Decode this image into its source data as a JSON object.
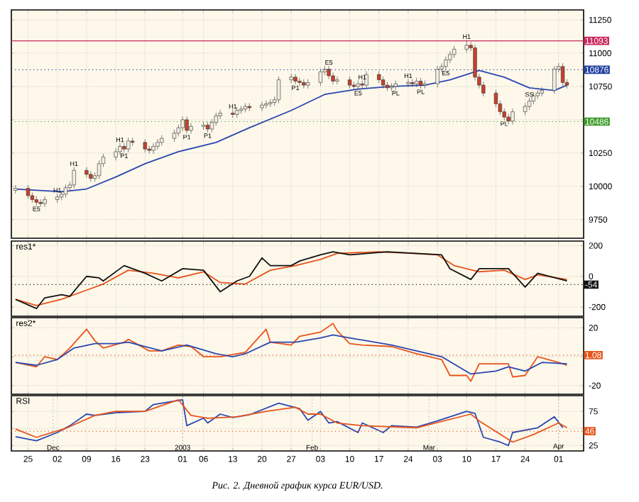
{
  "chart_data": [
    {
      "type": "candlestick",
      "xlim": [
        "2002-11-21",
        "2003-04-07"
      ],
      "ylim": [
        9610,
        11325
      ],
      "grid": true,
      "tick_labels": "y",
      "x": [
        "2002-11-22",
        "2002-11-25",
        "2002-11-26",
        "2002-11-27",
        "2002-11-28",
        "2002-11-29",
        "2002-12-02",
        "2002-12-03",
        "2002-12-04",
        "2002-12-05",
        "2002-12-06",
        "2002-12-09",
        "2002-12-10",
        "2002-12-11",
        "2002-12-12",
        "2002-12-13",
        "2002-12-16",
        "2002-12-17",
        "2002-12-18",
        "2002-12-19",
        "2002-12-20",
        "2002-12-23",
        "2002-12-24",
        "2002-12-25",
        "2002-12-26",
        "2002-12-27",
        "2002-12-30",
        "2002-12-31",
        "2003-01-01",
        "2003-01-02",
        "2003-01-03",
        "2003-01-06",
        "2003-01-07",
        "2003-01-08",
        "2003-01-09",
        "2003-01-10",
        "2003-01-13",
        "2003-01-14",
        "2003-01-15",
        "2003-01-16",
        "2003-01-17",
        "2003-01-20",
        "2003-01-21",
        "2003-01-22",
        "2003-01-23",
        "2003-01-24",
        "2003-01-27",
        "2003-01-28",
        "2003-01-29",
        "2003-01-30",
        "2003-01-31",
        "2003-02-03",
        "2003-02-04",
        "2003-02-05",
        "2003-02-06",
        "2003-02-07",
        "2003-02-10",
        "2003-02-11",
        "2003-02-12",
        "2003-02-13",
        "2003-02-14",
        "2003-02-17",
        "2003-02-18",
        "2003-02-19",
        "2003-02-20",
        "2003-02-21",
        "2003-02-24",
        "2003-02-25",
        "2003-02-26",
        "2003-02-27",
        "2003-02-28",
        "2003-03-03",
        "2003-03-04",
        "2003-03-05",
        "2003-03-06",
        "2003-03-07",
        "2003-03-10",
        "2003-03-11",
        "2003-03-12",
        "2003-03-13",
        "2003-03-14",
        "2003-03-17",
        "2003-03-18",
        "2003-03-19",
        "2003-03-20",
        "2003-03-21",
        "2003-03-24",
        "2003-03-25",
        "2003-03-26",
        "2003-03-27",
        "2003-03-28",
        "2003-03-31",
        "2003-04-01",
        "2003-04-02",
        "2003-04-03"
      ],
      "ohlc": [
        [
          9970,
          10010,
          9945,
          9985
        ],
        [
          9985,
          10010,
          9905,
          9930
        ],
        [
          9930,
          9955,
          9875,
          9900
        ],
        [
          9900,
          9925,
          9855,
          9880
        ],
        [
          9880,
          9905,
          9845,
          9870
        ],
        [
          9870,
          9925,
          9845,
          9900
        ],
        [
          9900,
          9945,
          9875,
          9920
        ],
        [
          9920,
          9965,
          9895,
          9940
        ],
        [
          9940,
          10015,
          9915,
          9990
        ],
        [
          9990,
          10035,
          9965,
          10010
        ],
        [
          10010,
          10145,
          9985,
          10120
        ],
        [
          10120,
          10145,
          10065,
          10090
        ],
        [
          10090,
          10115,
          10035,
          10060
        ],
        [
          10060,
          10105,
          10035,
          10080
        ],
        [
          10080,
          10195,
          10055,
          10170
        ],
        [
          10170,
          10245,
          10145,
          10220
        ],
        [
          10220,
          10285,
          10195,
          10260
        ],
        [
          10260,
          10325,
          10235,
          10300
        ],
        [
          10300,
          10325,
          10255,
          10280
        ],
        [
          10280,
          10365,
          10255,
          10340
        ],
        [
          10340,
          10365,
          10305,
          10330
        ],
        [
          10330,
          10355,
          10255,
          10280
        ],
        [
          10280,
          10305,
          10245,
          10270
        ],
        [
          10270,
          10325,
          10245,
          10300
        ],
        [
          10300,
          10355,
          10275,
          10330
        ],
        [
          10330,
          10385,
          10305,
          10360
        ],
        [
          10360,
          10425,
          10335,
          10400
        ],
        [
          10400,
          10465,
          10375,
          10440
        ],
        [
          10440,
          10525,
          10415,
          10500
        ],
        [
          10500,
          10525,
          10395,
          10420
        ],
        [
          10420,
          10475,
          10395,
          10450
        ],
        [
          10450,
          10485,
          10425,
          10460
        ],
        [
          10460,
          10485,
          10405,
          10430
        ],
        [
          10430,
          10505,
          10405,
          10480
        ],
        [
          10480,
          10555,
          10455,
          10530
        ],
        [
          10530,
          10575,
          10505,
          10550
        ],
        [
          10550,
          10575,
          10515,
          10540
        ],
        [
          10540,
          10595,
          10515,
          10570
        ],
        [
          10570,
          10605,
          10545,
          10580
        ],
        [
          10580,
          10625,
          10555,
          10600
        ],
        [
          10600,
          10625,
          10565,
          10590
        ],
        [
          10590,
          10635,
          10565,
          10610
        ],
        [
          10610,
          10645,
          10585,
          10620
        ],
        [
          10620,
          10655,
          10595,
          10630
        ],
        [
          10630,
          10675,
          10605,
          10650
        ],
        [
          10650,
          10825,
          10625,
          10800
        ],
        [
          10800,
          10845,
          10775,
          10820
        ],
        [
          10820,
          10845,
          10765,
          10790
        ],
        [
          10790,
          10815,
          10755,
          10780
        ],
        [
          10780,
          10805,
          10735,
          10760
        ],
        [
          10760,
          10805,
          10735,
          10780
        ],
        [
          10780,
          10885,
          10755,
          10860
        ],
        [
          10860,
          10905,
          10835,
          10880
        ],
        [
          10880,
          10905,
          10805,
          10830
        ],
        [
          10830,
          10855,
          10765,
          10790
        ],
        [
          10790,
          10825,
          10765,
          10800
        ],
        [
          10800,
          10825,
          10735,
          10760
        ],
        [
          10760,
          10785,
          10725,
          10750
        ],
        [
          10750,
          10795,
          10725,
          10770
        ],
        [
          10770,
          10795,
          10735,
          10760
        ],
        [
          10760,
          10865,
          10735,
          10840
        ],
        [
          10840,
          10865,
          10775,
          10800
        ],
        [
          10800,
          10825,
          10735,
          10760
        ],
        [
          10760,
          10785,
          10715,
          10740
        ],
        [
          10740,
          10775,
          10715,
          10750
        ],
        [
          10750,
          10795,
          10725,
          10770
        ],
        [
          10770,
          10805,
          10745,
          10780
        ],
        [
          10780,
          10805,
          10745,
          10770
        ],
        [
          10770,
          10815,
          10745,
          10790
        ],
        [
          10790,
          10815,
          10735,
          10760
        ],
        [
          10760,
          10795,
          10735,
          10770
        ],
        [
          10770,
          10905,
          10745,
          10880
        ],
        [
          10880,
          10925,
          10855,
          10900
        ],
        [
          10900,
          10975,
          10875,
          10950
        ],
        [
          10950,
          11015,
          10925,
          10990
        ],
        [
          10990,
          11055,
          10965,
          11030
        ],
        [
          11030,
          11100,
          11005,
          11060
        ],
        [
          11060,
          11085,
          11015,
          11040
        ],
        [
          11040,
          11065,
          10795,
          10820
        ],
        [
          10820,
          10845,
          10735,
          10760
        ],
        [
          10760,
          10785,
          10675,
          10700
        ],
        [
          10700,
          10725,
          10595,
          10620
        ],
        [
          10620,
          10645,
          10535,
          10560
        ],
        [
          10560,
          10585,
          10495,
          10520
        ],
        [
          10520,
          10545,
          10465,
          10490
        ],
        [
          10490,
          10585,
          10465,
          10560
        ],
        [
          10560,
          10625,
          10535,
          10600
        ],
        [
          10600,
          10665,
          10575,
          10640
        ],
        [
          10640,
          10705,
          10615,
          10680
        ],
        [
          10680,
          10725,
          10655,
          10700
        ],
        [
          10700,
          10745,
          10675,
          10720
        ],
        [
          10720,
          10905,
          10695,
          10880
        ],
        [
          10880,
          10925,
          10855,
          10900
        ],
        [
          10900,
          10925,
          10755,
          10780
        ],
        [
          10780,
          10805,
          10735,
          10760
        ]
      ],
      "series": [
        {
          "type": "line",
          "color": "#2b47b0",
          "x": [
            "2002-11-22",
            "2002-12-03",
            "2002-12-09",
            "2002-12-16",
            "2002-12-23",
            "2002-12-31",
            "2003-01-09",
            "2003-01-17",
            "2003-01-27",
            "2003-02-04",
            "2003-02-12",
            "2003-02-20",
            "2003-02-28",
            "2003-03-06",
            "2003-03-13",
            "2003-03-19",
            "2003-03-25",
            "2003-03-31",
            "2003-04-03"
          ],
          "values": [
            9980,
            9960,
            9980,
            10070,
            10170,
            10260,
            10330,
            10440,
            10570,
            10690,
            10730,
            10750,
            10760,
            10800,
            10870,
            10820,
            10740,
            10720,
            10760
          ]
        }
      ],
      "xticks": [
        "2002-11-25",
        "2002-12-02",
        "2002-12-09",
        "2002-12-16",
        "2002-12-23",
        "2003-01-01",
        "2003-01-06",
        "2003-01-13",
        "2003-01-20",
        "2003-01-27",
        "2003-02-03",
        "2003-02-10",
        "2003-02-17",
        "2003-02-24",
        "2003-03-03",
        "2003-03-10",
        "2003-03-17",
        "2003-03-24",
        "2003-04-01"
      ],
      "yticks": [
        9750,
        10000,
        10250,
        {
          "value": 10500,
          "label": null
        },
        10750,
        11000,
        11250
      ],
      "ref_lines": [
        {
          "axis": "y",
          "value": 11093,
          "label": "11093",
          "color": "#c8285a",
          "line_style": "solid"
        },
        {
          "axis": "y",
          "value": 10876,
          "label": "10876",
          "color": "#2040a0",
          "line_style": "dotted"
        },
        {
          "axis": "y",
          "value": 10486,
          "label": "10486",
          "color": "#3c9a28",
          "line_style": "dotted"
        }
      ],
      "annotations": [
        {
          "text": "E5",
          "x": "2002-11-27",
          "y": 9855
        },
        {
          "text": "H1",
          "x": "2002-12-02",
          "y": 9945
        },
        {
          "text": "H1",
          "x": "2002-12-06",
          "y": 10145
        },
        {
          "text": "H1",
          "x": "2002-12-17",
          "y": 10325
        },
        {
          "text": "P1",
          "x": "2002-12-18",
          "y": 10255
        },
        {
          "text": "P1",
          "x": "2003-01-02",
          "y": 10395
        },
        {
          "text": "P1",
          "x": "2003-01-07",
          "y": 10405
        },
        {
          "text": "H1",
          "x": "2003-01-13",
          "y": 10575
        },
        {
          "text": "P1",
          "x": "2003-01-28",
          "y": 10765
        },
        {
          "text": "E5",
          "x": "2003-02-05",
          "y": 10905
        },
        {
          "text": "E5",
          "x": "2003-02-12",
          "y": 10725
        },
        {
          "text": "H1",
          "x": "2003-02-13",
          "y": 10795
        },
        {
          "text": "PL",
          "x": "2003-02-21",
          "y": 10725
        },
        {
          "text": "H1",
          "x": "2003-02-24",
          "y": 10805
        },
        {
          "text": "PL",
          "x": "2003-02-27",
          "y": 10735
        },
        {
          "text": "H1",
          "x": "2003-03-10",
          "y": 11100
        },
        {
          "text": "E5",
          "x": "2003-03-05",
          "y": 10875
        },
        {
          "text": "PL",
          "x": "2003-03-19",
          "y": 10495
        },
        {
          "text": "SS",
          "x": "2003-03-25",
          "y": 10665
        }
      ]
    },
    {
      "type": "line",
      "title": "res1*",
      "xlim": [
        "2002-11-21",
        "2003-04-07"
      ],
      "ylim": [
        -260,
        230
      ],
      "grid": true,
      "tick_labels": "y",
      "xticks": [
        "2002-11-25",
        "2002-12-02",
        "2002-12-09",
        "2002-12-16",
        "2002-12-23",
        "2003-01-01",
        "2003-01-06",
        "2003-01-13",
        "2003-01-20",
        "2003-01-27",
        "2003-02-03",
        "2003-02-10",
        "2003-02-17",
        "2003-02-24",
        "2003-03-03",
        "2003-03-10",
        "2003-03-17",
        "2003-03-24",
        "2003-04-01"
      ],
      "yticks": [
        -200,
        0,
        200
      ],
      "series": [
        {
          "color": "#e8541c",
          "x": [
            "2002-11-22",
            "2002-11-27",
            "2002-12-03",
            "2002-12-09",
            "2002-12-13",
            "2002-12-19",
            "2002-12-25",
            "2002-12-31",
            "2003-01-06",
            "2003-01-10",
            "2003-01-16",
            "2003-01-22",
            "2003-01-28",
            "2003-02-03",
            "2003-02-07",
            "2003-02-17",
            "2003-02-25",
            "2003-03-03",
            "2003-03-07",
            "2003-03-13",
            "2003-03-19",
            "2003-03-24",
            "2003-03-27",
            "2003-04-03"
          ],
          "values": [
            -150,
            -190,
            -150,
            -90,
            -50,
            40,
            20,
            -10,
            30,
            -40,
            -50,
            40,
            70,
            110,
            150,
            160,
            150,
            140,
            70,
            30,
            40,
            -20,
            10,
            -20
          ]
        },
        {
          "color": "#111111",
          "x": [
            "2002-11-22",
            "2002-11-27",
            "2002-11-29",
            "2002-12-03",
            "2002-12-05",
            "2002-12-09",
            "2002-12-12",
            "2002-12-13",
            "2002-12-18",
            "2002-12-23",
            "2002-12-27",
            "2003-01-01",
            "2003-01-06",
            "2003-01-10",
            "2003-01-14",
            "2003-01-17",
            "2003-01-20",
            "2003-01-22",
            "2003-01-27",
            "2003-01-29",
            "2003-02-03",
            "2003-02-06",
            "2003-02-10",
            "2003-02-19",
            "2003-03-04",
            "2003-03-06",
            "2003-03-11",
            "2003-03-13",
            "2003-03-20",
            "2003-03-24",
            "2003-03-27",
            "2003-04-03"
          ],
          "values": [
            -150,
            -210,
            -140,
            -120,
            -130,
            0,
            -10,
            -30,
            70,
            20,
            -30,
            50,
            40,
            -100,
            -30,
            0,
            120,
            70,
            70,
            100,
            140,
            160,
            140,
            160,
            140,
            50,
            -20,
            50,
            50,
            -70,
            20,
            -30
          ]
        }
      ],
      "ref_lines": [
        {
          "axis": "y",
          "value": -54,
          "label": "-54",
          "color": "#111111",
          "line_style": "dotted"
        }
      ]
    },
    {
      "type": "line",
      "title": "res2*",
      "xlim": [
        "2002-11-21",
        "2003-04-07"
      ],
      "ylim": [
        -26,
        27
      ],
      "grid": true,
      "tick_labels": "y",
      "xticks": [
        "2002-11-25",
        "2002-12-02",
        "2002-12-09",
        "2002-12-16",
        "2002-12-23",
        "2003-01-01",
        "2003-01-06",
        "2003-01-13",
        "2003-01-20",
        "2003-01-27",
        "2003-02-03",
        "2003-02-10",
        "2003-02-17",
        "2003-02-24",
        "2003-03-03",
        "2003-03-10",
        "2003-03-17",
        "2003-03-24",
        "2003-04-01"
      ],
      "yticks": [
        -20,
        {
          "value": 0,
          "label": null
        },
        20
      ],
      "series": [
        {
          "color": "#e8541c",
          "x": [
            "2002-11-22",
            "2002-11-27",
            "2002-11-29",
            "2002-12-02",
            "2002-12-05",
            "2002-12-09",
            "2002-12-11",
            "2002-12-13",
            "2002-12-18",
            "2002-12-19",
            "2002-12-24",
            "2002-12-27",
            "2002-12-31",
            "2003-01-03",
            "2003-01-06",
            "2003-01-10",
            "2003-01-16",
            "2003-01-21",
            "2003-01-22",
            "2003-01-27",
            "2003-01-29",
            "2003-02-03",
            "2003-02-06",
            "2003-02-07",
            "2003-02-10",
            "2003-02-13",
            "2003-02-20",
            "2003-02-26",
            "2003-03-04",
            "2003-03-06",
            "2003-03-10",
            "2003-03-11",
            "2003-03-13",
            "2003-03-20",
            "2003-03-21",
            "2003-03-24",
            "2003-03-27",
            "2003-04-01",
            "2003-04-03"
          ],
          "values": [
            -4,
            -7,
            0,
            -2,
            6,
            19,
            11,
            6,
            10,
            12,
            4,
            4,
            8,
            7,
            0,
            0,
            3,
            19,
            10,
            8,
            14,
            17,
            23,
            18,
            9,
            8,
            7,
            2,
            -2,
            -13,
            -13,
            -17,
            -5,
            -5,
            -14,
            -13,
            0,
            -4,
            -6
          ]
        },
        {
          "color": "#2b47b0",
          "x": [
            "2002-11-22",
            "2002-11-27",
            "2002-12-02",
            "2002-12-06",
            "2002-12-11",
            "2002-12-16",
            "2002-12-19",
            "2002-12-27",
            "2003-01-02",
            "2003-01-09",
            "2003-01-13",
            "2003-01-16",
            "2003-01-22",
            "2003-01-28",
            "2003-02-03",
            "2003-02-06",
            "2003-02-10",
            "2003-02-20",
            "2003-03-04",
            "2003-03-11",
            "2003-03-17",
            "2003-03-20",
            "2003-03-24",
            "2003-03-28",
            "2003-04-03"
          ],
          "values": [
            -4,
            -6,
            -2,
            6,
            9,
            9,
            10,
            4,
            8,
            2,
            0,
            2,
            10,
            10,
            13,
            15,
            13,
            8,
            0,
            -12,
            -10,
            -7,
            -10,
            -4,
            -5
          ]
        }
      ],
      "ref_lines": [
        {
          "axis": "y",
          "value": 1.08,
          "label": "1.08",
          "color": "#e8541c",
          "line_style": "dotted"
        }
      ]
    },
    {
      "type": "line",
      "title": "RSI",
      "xlim": [
        "2002-11-21",
        "2003-04-07"
      ],
      "ylim": [
        17,
        98
      ],
      "grid": true,
      "xticks": [
        {
          "value": "2002-11-25",
          "label": "25"
        },
        {
          "value": "2002-12-02",
          "label": "02"
        },
        {
          "value": "2002-12-09",
          "label": "09"
        },
        {
          "value": "2002-12-16",
          "label": "16"
        },
        {
          "value": "2002-12-23",
          "label": "23"
        },
        {
          "value": "2003-01-01",
          "label": "01"
        },
        {
          "value": "2003-01-06",
          "label": "06"
        },
        {
          "value": "2003-01-13",
          "label": "13"
        },
        {
          "value": "2003-01-20",
          "label": "20"
        },
        {
          "value": "2003-01-27",
          "label": "27"
        },
        {
          "value": "2003-02-03",
          "label": "03"
        },
        {
          "value": "2003-02-10",
          "label": "10"
        },
        {
          "value": "2003-02-17",
          "label": "17"
        },
        {
          "value": "2003-02-24",
          "label": "24"
        },
        {
          "value": "2003-03-03",
          "label": "03"
        },
        {
          "value": "2003-03-10",
          "label": "10"
        },
        {
          "value": "2003-03-17",
          "label": "17"
        },
        {
          "value": "2003-03-24",
          "label": "24"
        },
        {
          "value": "2003-04-01",
          "label": "01"
        }
      ],
      "x2lim": [
        "2002-11-21",
        "2003-04-07"
      ],
      "x2ticks": [
        {
          "value": "2002-12-01",
          "label": "Dec"
        },
        {
          "value": "2003-01-01",
          "label": "2003"
        },
        {
          "value": "2003-02-01",
          "label": "Feb"
        },
        {
          "value": "2003-03-01",
          "label": "Mar"
        },
        {
          "value": "2003-04-01",
          "label": "Apr"
        }
      ],
      "yticks": [
        25,
        {
          "value": 50,
          "label": null
        },
        75
      ],
      "series": [
        {
          "color": "#2b47b0",
          "x": [
            "2002-11-22",
            "2002-11-27",
            "2002-12-02",
            "2002-12-05",
            "2002-12-09",
            "2002-12-11",
            "2002-12-16",
            "2002-12-23",
            "2002-12-25",
            "2003-01-01",
            "2003-01-02",
            "2003-01-06",
            "2003-01-07",
            "2003-01-10",
            "2003-01-13",
            "2003-01-17",
            "2003-01-24",
            "2003-01-29",
            "2003-01-31",
            "2003-02-03",
            "2003-02-05",
            "2003-02-07",
            "2003-02-12",
            "2003-02-13",
            "2003-02-18",
            "2003-02-20",
            "2003-02-26",
            "2003-03-03",
            "2003-03-10",
            "2003-03-12",
            "2003-03-14",
            "2003-03-18",
            "2003-03-20",
            "2003-03-21",
            "2003-03-27",
            "2003-03-31",
            "2003-04-02"
          ],
          "values": [
            38,
            32,
            44,
            54,
            71,
            69,
            73,
            75,
            85,
            92,
            54,
            65,
            58,
            71,
            66,
            70,
            87,
            79,
            62,
            75,
            58,
            60,
            44,
            58,
            44,
            54,
            52,
            61,
            75,
            72,
            37,
            30,
            25,
            44,
            51,
            67,
            51
          ]
        },
        {
          "color": "#e8541c",
          "x": [
            "2002-11-22",
            "2002-11-27",
            "2002-12-04",
            "2002-12-11",
            "2002-12-16",
            "2002-12-23",
            "2002-12-31",
            "2003-01-03",
            "2003-01-07",
            "2003-01-14",
            "2003-01-21",
            "2003-01-28",
            "2003-01-31",
            "2003-02-03",
            "2003-02-07",
            "2003-02-13",
            "2003-02-26",
            "2003-03-11",
            "2003-03-13",
            "2003-03-21",
            "2003-03-26",
            "2003-04-01",
            "2003-04-03"
          ],
          "values": [
            49,
            37,
            50,
            69,
            75,
            75,
            92,
            69,
            65,
            67,
            75,
            81,
            71,
            71,
            58,
            54,
            51,
            71,
            61,
            30,
            41,
            58,
            51
          ]
        }
      ],
      "ref_lines": [
        {
          "axis": "y",
          "value": 46,
          "label": "46",
          "color": "#e8541c",
          "line_style": "dotted"
        }
      ],
      "annotations": [
        "Рис. 2. Дневной график курса EUR/USD."
      ]
    }
  ]
}
